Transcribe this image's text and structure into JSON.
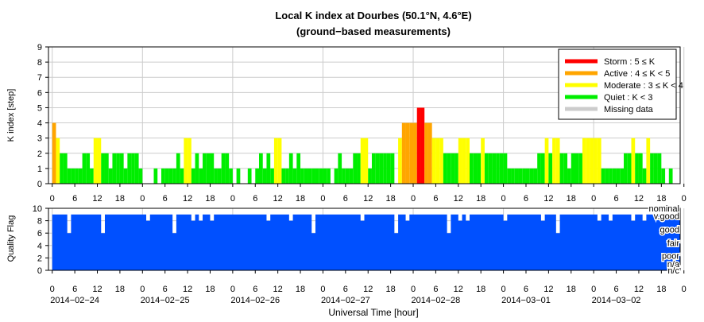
{
  "chart_data": [
    {
      "type": "bar",
      "title": "Local K index at Dourbes (50.1°N, 4.6°E)",
      "subtitle": "(ground−based measurements)",
      "ylabel": "K index [step]",
      "ylim": [
        0,
        9
      ],
      "yticks": [
        "0",
        "1",
        "2",
        "3",
        "4",
        "5",
        "6",
        "7",
        "8",
        "9"
      ],
      "xticks": [
        "0",
        "6",
        "12",
        "18",
        "0",
        "6",
        "12",
        "18",
        "0",
        "6",
        "12",
        "18",
        "0",
        "6",
        "12",
        "18",
        "0",
        "6",
        "12",
        "18",
        "0",
        "6",
        "12",
        "18",
        "0",
        "6",
        "12",
        "18",
        "0"
      ],
      "grid": true,
      "bar_width_hours": 1,
      "x_start_hour": -1,
      "x_end_hour": 167,
      "legend_position": "top-right",
      "legend": [
        {
          "label": "Storm : 5 ≤ K",
          "color": "#ff0000"
        },
        {
          "label": "Active : 4 ≤ K < 5",
          "color": "#ffa500"
        },
        {
          "label": "Moderate : 3 ≤ K < 4",
          "color": "#ffff00"
        },
        {
          "label": "Quiet : K < 3",
          "color": "#00ee00"
        },
        {
          "label": "Missing data",
          "color": "#cccccc"
        }
      ],
      "values": [
        4,
        3,
        2,
        2,
        1,
        1,
        1,
        1,
        2,
        2,
        1,
        3,
        3,
        2,
        2,
        1,
        2,
        2,
        2,
        1,
        2,
        2,
        2,
        1,
        0,
        0,
        0,
        1,
        0,
        1,
        1,
        1,
        1,
        2,
        1,
        3,
        3,
        1,
        2,
        1,
        2,
        2,
        2,
        1,
        1,
        2,
        2,
        1,
        0,
        1,
        0,
        0,
        1,
        0,
        1,
        2,
        1,
        2,
        1,
        3,
        3,
        1,
        1,
        2,
        1,
        2,
        1,
        1,
        1,
        1,
        1,
        1,
        1,
        1,
        0,
        1,
        2,
        1,
        1,
        1,
        2,
        2,
        3,
        3,
        1,
        2,
        2,
        2,
        2,
        2,
        2,
        0,
        3,
        4,
        4,
        4,
        4,
        5,
        5,
        4,
        4,
        3,
        3,
        3,
        2,
        2,
        2,
        2,
        3,
        3,
        3,
        2,
        2,
        2,
        3,
        2,
        2,
        2,
        2,
        2,
        2,
        1,
        1,
        1,
        1,
        1,
        1,
        1,
        1,
        2,
        2,
        3,
        2,
        3,
        3,
        2,
        2,
        1,
        2,
        2,
        2,
        3,
        3,
        3,
        3,
        3,
        1,
        1,
        1,
        1,
        1,
        1,
        2,
        2,
        3,
        2,
        2,
        1,
        3,
        2,
        2,
        2,
        1,
        0,
        1,
        0,
        0
      ]
    },
    {
      "type": "area",
      "ylabel": "Quality Flag",
      "ylim": [
        0,
        10
      ],
      "yticks": [
        "0",
        "2",
        "4",
        "6",
        "8",
        "10"
      ],
      "xticks": [
        "0",
        "6",
        "12",
        "18",
        "0",
        "6",
        "12",
        "18",
        "0",
        "6",
        "12",
        "18",
        "0",
        "6",
        "12",
        "18",
        "0",
        "6",
        "12",
        "18",
        "0",
        "6",
        "12",
        "18",
        "0",
        "6",
        "12",
        "18",
        "0"
      ],
      "date_labels": [
        "2014−02−24",
        "2014−02−25",
        "2014−02−26",
        "2014−02−27",
        "2014−02−28",
        "2014−03−01",
        "2014−03−02"
      ],
      "xlabel": "Universal Time [hour]",
      "fill_color": "#0050ff",
      "flag_labels": [
        {
          "label": "nominal",
          "value": 10
        },
        {
          "label": "v.good",
          "value": 8.8
        },
        {
          "label": "good",
          "value": 6.6
        },
        {
          "label": "fair",
          "value": 4.4
        },
        {
          "label": "poor",
          "value": 2.4
        },
        {
          "label": "n/a",
          "value": 1.0
        },
        {
          "label": "n/c",
          "value": 0
        }
      ],
      "baseline": 9,
      "dips": [
        [
          4,
          6
        ],
        [
          13,
          6
        ],
        [
          25,
          8
        ],
        [
          32,
          6
        ],
        [
          37,
          8
        ],
        [
          39,
          8
        ],
        [
          42,
          8
        ],
        [
          57,
          8
        ],
        [
          63,
          8
        ],
        [
          69,
          6
        ],
        [
          82,
          8
        ],
        [
          91,
          6
        ],
        [
          94,
          8
        ],
        [
          105,
          6
        ],
        [
          108,
          8
        ],
        [
          110,
          8
        ],
        [
          120,
          8
        ],
        [
          130,
          8
        ],
        [
          134,
          6
        ],
        [
          145,
          8
        ],
        [
          148,
          8
        ],
        [
          154,
          8
        ],
        [
          157,
          8
        ]
      ]
    }
  ]
}
